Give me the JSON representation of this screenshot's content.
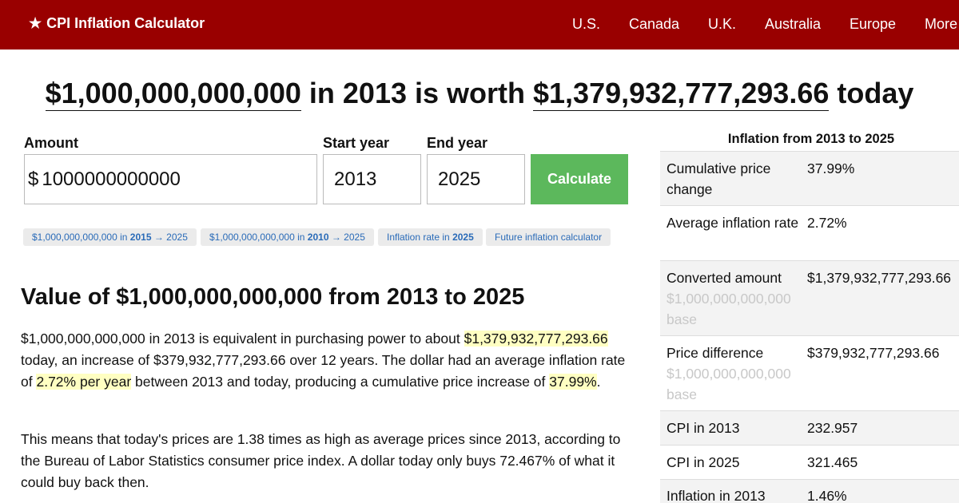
{
  "header": {
    "star": "★",
    "brand": "CPI Inflation Calculator",
    "nav": [
      "U.S.",
      "Canada",
      "U.K.",
      "Australia",
      "Europe",
      "More"
    ]
  },
  "headline": {
    "amount": "$1,000,000,000,000",
    "mid": "in 2013 is worth",
    "worth": "$1,379,932,777,293.66",
    "end": "today"
  },
  "form": {
    "amount_label": "Amount",
    "currency": "$",
    "amount_value": "1000000000000",
    "start_label": "Start year",
    "start_value": "2013",
    "end_label": "End year",
    "end_value": "2025",
    "calculate": "Calculate"
  },
  "quick_links": [
    {
      "pre": "$1,000,000,000,000 in",
      "bold": "2015",
      "post": "→ 2025"
    },
    {
      "pre": "$1,000,000,000,000 in",
      "bold": "2010",
      "post": "→ 2025"
    },
    {
      "pre": "Inflation rate in",
      "bold": "2025",
      "post": ""
    },
    {
      "pre": "Future inflation calculator",
      "bold": "",
      "post": ""
    }
  ],
  "article": {
    "heading": "Value of $1,000,000,000,000 from 2013 to 2025",
    "p1": {
      "a": "$1,000,000,000,000 in 2013 is equivalent in purchasing power to about",
      "hl1": "$1,379,932,777,293.66",
      "b": "today, an increase of $379,932,777,293.66 over 12 years. The dollar had an average inflation rate of",
      "hl2": "2.72% per year",
      "c": "between 2013 and today, producing a cumulative price increase of",
      "hl3": "37.99%",
      "d": "."
    },
    "p2": "This means that today's prices are 1.38 times as high as average prices since 2013, according to the Bureau of Labor Statistics consumer price index. A dollar today only buys 72.467% of what it could buy back then."
  },
  "sidebar": {
    "title": "Inflation from 2013 to 2025",
    "rows": [
      {
        "label": "Cumulative price change",
        "sub": "",
        "value": "37.99%"
      },
      {
        "label": "Average inflation rate",
        "sub": "",
        "value": "2.72%"
      },
      {
        "label": "Converted amount",
        "sub": "$1,000,000,000,000 base",
        "value": "$1,379,932,777,293.66"
      },
      {
        "label": "Price difference",
        "sub": "$1,000,000,000,000 base",
        "value": "$379,932,777,293.66"
      },
      {
        "label": "CPI in 2013",
        "sub": "",
        "value": "232.957"
      },
      {
        "label": "CPI in 2025",
        "sub": "",
        "value": "321.465"
      },
      {
        "label": "Inflation in 2013",
        "sub": "",
        "value": "1.46%"
      }
    ]
  },
  "colors": {
    "header_bg": "#990000",
    "calculate_bg": "#5cb85c",
    "link": "#2a6bb8",
    "highlight": "#ffffc2"
  }
}
